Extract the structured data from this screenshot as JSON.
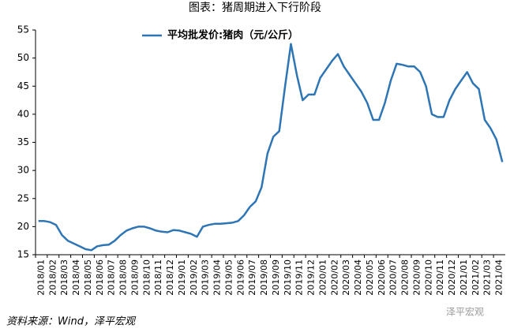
{
  "chart_data": {
    "type": "line",
    "title": "图表：猪周期进入下行阶段",
    "source": "资料来源：Wind，泽平宏观",
    "watermark": "泽平宏观",
    "xticks": [
      "2018/01",
      "2018/02",
      "2018/03",
      "2018/04",
      "2018/05",
      "2018/06",
      "2018/07",
      "2018/08",
      "2018/09",
      "2018/10",
      "2018/11",
      "2018/12",
      "2019/01",
      "2019/02",
      "2019/03",
      "2019/04",
      "2019/05",
      "2019/06",
      "2019/07",
      "2019/08",
      "2019/09",
      "2019/10",
      "2019/11",
      "2019/12",
      "2020/01",
      "2020/02",
      "2020/03",
      "2020/04",
      "2020/05",
      "2020/06",
      "2020/07",
      "2020/08",
      "2020/09",
      "2020/10",
      "2020/11",
      "2020/12",
      "2021/01",
      "2021/02",
      "2021/03",
      "2021/04"
    ],
    "x": [
      "2018/01",
      "2018/01",
      "2018/02",
      "2018/02",
      "2018/03",
      "2018/03",
      "2018/04",
      "2018/04",
      "2018/05",
      "2018/05",
      "2018/06",
      "2018/06",
      "2018/07",
      "2018/07",
      "2018/08",
      "2018/08",
      "2018/09",
      "2018/09",
      "2018/10",
      "2018/10",
      "2018/11",
      "2018/11",
      "2018/12",
      "2018/12",
      "2019/01",
      "2019/01",
      "2019/02",
      "2019/02",
      "2019/03",
      "2019/03",
      "2019/04",
      "2019/04",
      "2019/05",
      "2019/05",
      "2019/06",
      "2019/06",
      "2019/07",
      "2019/07",
      "2019/08",
      "2019/08",
      "2019/09",
      "2019/09",
      "2019/10",
      "2019/10",
      "2019/11",
      "2019/11",
      "2019/12",
      "2019/12",
      "2020/01",
      "2020/01",
      "2020/02",
      "2020/02",
      "2020/03",
      "2020/03",
      "2020/04",
      "2020/04",
      "2020/05",
      "2020/05",
      "2020/06",
      "2020/06",
      "2020/07",
      "2020/07",
      "2020/08",
      "2020/08",
      "2020/09",
      "2020/09",
      "2020/10",
      "2020/10",
      "2020/11",
      "2020/11",
      "2020/12",
      "2020/12",
      "2021/01",
      "2021/01",
      "2021/02",
      "2021/02",
      "2021/03",
      "2021/03",
      "2021/04",
      "2021/04"
    ],
    "series": [
      {
        "name": "平均批发价:猪肉（元/公斤）",
        "color": "#2e75b6",
        "values": [
          21,
          21,
          20.8,
          20.3,
          18.5,
          17.5,
          17,
          16.5,
          16,
          15.8,
          16.5,
          16.7,
          16.8,
          17.5,
          18.5,
          19.3,
          19.7,
          20,
          20,
          19.7,
          19.3,
          19.1,
          19,
          19.4,
          19.3,
          19,
          18.7,
          18.2,
          20,
          20.3,
          20.5,
          20.5,
          20.6,
          20.7,
          21,
          22,
          23.5,
          24.5,
          27,
          33,
          36,
          37,
          45,
          52.5,
          47,
          42.5,
          43.5,
          43.5,
          46.5,
          48,
          49.5,
          50.7,
          48.5,
          47,
          45.5,
          44,
          42,
          39,
          39,
          42,
          46,
          49,
          48.8,
          48.5,
          48.5,
          47.5,
          45,
          40,
          39.5,
          39.5,
          42.5,
          44.5,
          46,
          47.5,
          45.5,
          44.5,
          39,
          37.5,
          35.5,
          31.5
        ]
      }
    ],
    "ylim": [
      15,
      55
    ],
    "yticks": [
      15,
      20,
      25,
      30,
      35,
      40,
      45,
      50,
      55
    ],
    "legend": "top"
  }
}
